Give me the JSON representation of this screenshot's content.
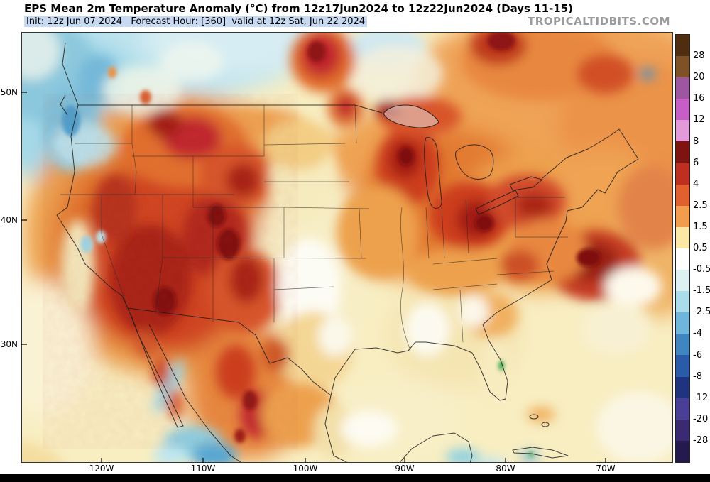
{
  "header": {
    "title": "EPS Mean 2m Temperature Anomaly (°C) from 12z17Jun2024 to 12z22Jun2024 (Days 11-15)",
    "init_line": "Init: 12z Jun 07 2024   Forecast Hour: [360]  valid at 12z Sat, Jun 22 2024",
    "watermark": "TROPICALTIDBITS.COM"
  },
  "axes": {
    "lat_labels": [
      "50N",
      "40N",
      "30N"
    ],
    "lon_labels": [
      "120W",
      "110W",
      "100W",
      "90W",
      "80W",
      "70W"
    ]
  },
  "colorbar": {
    "unit": "°C",
    "tick_labels": [
      "28",
      "20",
      "16",
      "12",
      "8",
      "6",
      "4",
      "2.5",
      "1.5",
      "0.5",
      "-0.5",
      "-1.5",
      "-2.5",
      "-4",
      "-6",
      "-8",
      "-12",
      "-20",
      "-28"
    ],
    "segment_colors": [
      "#4f2d10",
      "#7e5226",
      "#9c57a0",
      "#c55ec5",
      "#e39ad8",
      "#7f1310",
      "#bf2f21",
      "#e2602f",
      "#f29c4e",
      "#fbe8a6",
      "#ffffff",
      "#ddf1f2",
      "#abdcea",
      "#6fb6da",
      "#3f86c0",
      "#2a5ba8",
      "#20337e",
      "#4a3f96",
      "#3a2a72",
      "#241a4e"
    ]
  },
  "chart_data": {
    "type": "heatmap",
    "title": "EPS Mean 2m Temperature Anomaly (°C) from 12z17Jun2024 to 12z22Jun2024 (Days 11-15)",
    "variable": "Mean 2m Temperature Anomaly",
    "units": "°C",
    "init": "12z Jun 07 2024",
    "forecast_hour": 360,
    "valid": "12z Sat, Jun 22 2024",
    "scale_ticks": [
      28,
      20,
      16,
      12,
      8,
      6,
      4,
      2.5,
      1.5,
      0.5,
      -0.5,
      -1.5,
      -2.5,
      -4,
      -6,
      -8,
      -12,
      -20,
      -28
    ],
    "lat_range": [
      "25N",
      "55N"
    ],
    "lon_range": [
      "125W",
      "65W"
    ],
    "regional_anomalies": [
      {
        "region": "Great Basin / Southwest US (NV, UT, AZ)",
        "anomaly_c": "+5 to +8"
      },
      {
        "region": "Rockies / Colorado Plateau / New Mexico",
        "anomaly_c": "+4 to +7"
      },
      {
        "region": "Idaho / western Montana",
        "anomaly_c": "+4 to +6"
      },
      {
        "region": "California coast",
        "anomaly_c": "0 to +2"
      },
      {
        "region": "Northern Plains (Dakotas)",
        "anomaly_c": "+1 to +2.5"
      },
      {
        "region": "Central Plains (KS / OK / N TX)",
        "anomaly_c": "-0.5 to +1.5"
      },
      {
        "region": "Upper Midwest / Great Lakes (WI, MI, OH)",
        "anomaly_c": "+3 to +6"
      },
      {
        "region": "Northeast / Mid-Atlantic",
        "anomaly_c": "+3 to +6"
      },
      {
        "region": "Southeast (MS / AL / FL)",
        "anomaly_c": "-0.5 to +2"
      },
      {
        "region": "Pacific Northwest coast / British Columbia",
        "anomaly_c": "-2.5 to -0.5"
      },
      {
        "region": "Western-central Canada",
        "anomaly_c": "-1.5 to +0.5"
      },
      {
        "region": "Eastern Canada / Quebec / Ontario",
        "anomaly_c": "+3 to +6"
      },
      {
        "region": "Mexico interior (Sierra Madre)",
        "anomaly_c": "+2 to +6"
      },
      {
        "region": "Gulf of Mexico / western Atlantic",
        "anomaly_c": "0 to +1.5"
      }
    ]
  }
}
